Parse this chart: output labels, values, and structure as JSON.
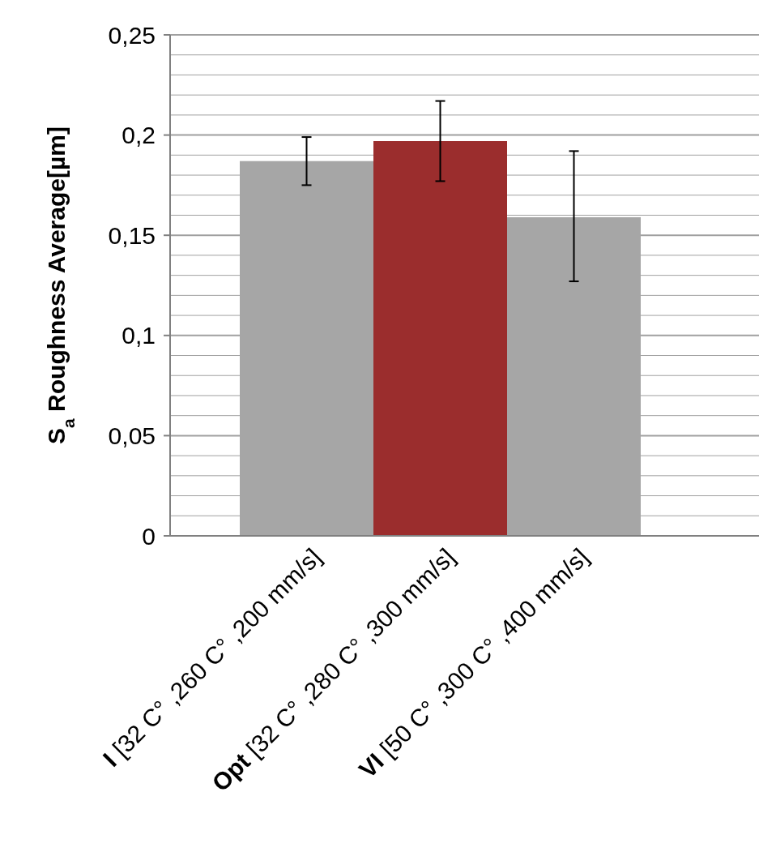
{
  "chart_data": {
    "type": "bar",
    "ylabel": "S$_{a}$ Roughness Average[µm]",
    "categories": [
      "I [32 C° ,260 C° ,200 mm/s]",
      "Opt [32 C° ,280 C° ,300 mm/s]",
      "VI [50 C° ,300 C° ,400 mm/s]"
    ],
    "values": [
      0.187,
      0.197,
      0.159
    ],
    "colors": [
      "#a6a6a6",
      "#9b2d2d",
      "#a6a6a6"
    ],
    "errors": [
      [
        0.175,
        0.199
      ],
      [
        0.177,
        0.217
      ],
      [
        0.127,
        0.192
      ]
    ],
    "ylim": [
      0,
      0.25
    ],
    "yticks": [
      {
        "value": 0,
        "label": "0"
      },
      {
        "value": 0.01,
        "label": null
      },
      {
        "value": 0.02,
        "label": null
      },
      {
        "value": 0.03,
        "label": null
      },
      {
        "value": 0.04,
        "label": null
      },
      {
        "value": 0.05,
        "label": "0,05"
      },
      {
        "value": 0.06,
        "label": null
      },
      {
        "value": 0.07,
        "label": null
      },
      {
        "value": 0.08,
        "label": null
      },
      {
        "value": 0.09,
        "label": null
      },
      {
        "value": 0.1,
        "label": "0,1"
      },
      {
        "value": 0.11,
        "label": null
      },
      {
        "value": 0.12,
        "label": null
      },
      {
        "value": 0.13,
        "label": null
      },
      {
        "value": 0.14,
        "label": null
      },
      {
        "value": 0.15,
        "label": "0,15"
      },
      {
        "value": 0.16,
        "label": null
      },
      {
        "value": 0.17,
        "label": null
      },
      {
        "value": 0.18,
        "label": null
      },
      {
        "value": 0.19,
        "label": null
      },
      {
        "value": 0.2,
        "label": "0,2"
      },
      {
        "value": 0.21,
        "label": null
      },
      {
        "value": 0.22,
        "label": null
      },
      {
        "value": 0.23,
        "label": null
      },
      {
        "value": 0.24,
        "label": null
      },
      {
        "value": 0.25,
        "label": "0,25"
      }
    ],
    "grid": true
  }
}
